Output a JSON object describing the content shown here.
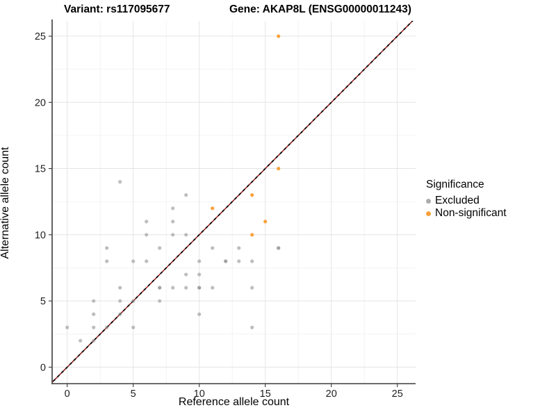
{
  "titles": {
    "variant": "Variant: rs117095677",
    "gene": "Gene: AKAP8L (ENSG00000011243)"
  },
  "chart_data": {
    "type": "scatter",
    "xlabel": "Reference allele count",
    "ylabel": "Alternative allele count",
    "xlim": [
      -1.1,
      26.4
    ],
    "ylim": [
      -1.2,
      26.2
    ],
    "xticks": [
      0,
      5,
      10,
      15,
      20,
      25
    ],
    "yticks": [
      0,
      5,
      10,
      15,
      20,
      25
    ],
    "minor_ticks": [
      2.5,
      7.5,
      12.5,
      17.5,
      22.5
    ],
    "grid": "major+minor",
    "identity_line": {
      "slope": 1,
      "intercept": 0,
      "style": "dashed",
      "colors": [
        "#000000",
        "#991111"
      ]
    },
    "legend": {
      "title": "Significance",
      "position": "right",
      "entries": [
        {
          "label": "Excluded",
          "color": "#ACACAC"
        },
        {
          "label": "Non-significant",
          "color": "#F9A23C"
        }
      ]
    },
    "series": [
      {
        "name": "Excluded",
        "color": "#8F8F8F",
        "opacity": 0.58,
        "points": [
          [
            0,
            3
          ],
          [
            1,
            2
          ],
          [
            2,
            2
          ],
          [
            2,
            3
          ],
          [
            2,
            4
          ],
          [
            2,
            5
          ],
          [
            3,
            3
          ],
          [
            3,
            8
          ],
          [
            3,
            9
          ],
          [
            4,
            4
          ],
          [
            4,
            5
          ],
          [
            4,
            6
          ],
          [
            4,
            14
          ],
          [
            5,
            3
          ],
          [
            5,
            5
          ],
          [
            5,
            8
          ],
          [
            6,
            8
          ],
          [
            6,
            10
          ],
          [
            6,
            11
          ],
          [
            7,
            5
          ],
          [
            7,
            6
          ],
          [
            7,
            6
          ],
          [
            7,
            9
          ],
          [
            8,
            6
          ],
          [
            8,
            10
          ],
          [
            8,
            11
          ],
          [
            8,
            12
          ],
          [
            9,
            6
          ],
          [
            9,
            7
          ],
          [
            9,
            10
          ],
          [
            9,
            13
          ],
          [
            10,
            4
          ],
          [
            10,
            6
          ],
          [
            10,
            6
          ],
          [
            10,
            7
          ],
          [
            10,
            8
          ],
          [
            11,
            6
          ],
          [
            11,
            9
          ],
          [
            12,
            8
          ],
          [
            12,
            8
          ],
          [
            13,
            8
          ],
          [
            13,
            9
          ],
          [
            14,
            3
          ],
          [
            14,
            6
          ],
          [
            14,
            8
          ],
          [
            16,
            9
          ],
          [
            16,
            9
          ]
        ]
      },
      {
        "name": "Non-significant",
        "color": "#F9A23C",
        "opacity": 1,
        "points": [
          [
            11,
            12
          ],
          [
            14,
            10
          ],
          [
            14,
            13
          ],
          [
            15,
            11
          ],
          [
            16,
            15
          ],
          [
            16,
            25
          ]
        ]
      }
    ]
  }
}
